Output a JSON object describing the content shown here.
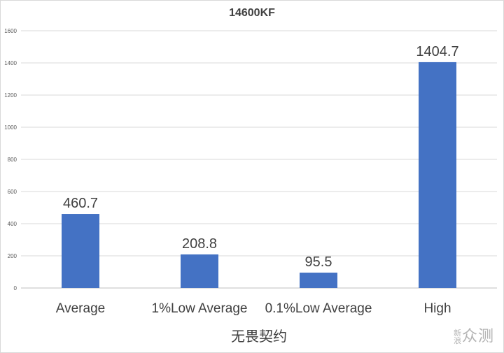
{
  "chart_data": {
    "type": "bar",
    "title": "14600KF",
    "subtitle": "无畏契约",
    "categories": [
      "Average",
      "1%Low Average",
      "0.1%Low Average",
      "High"
    ],
    "values": [
      460.7,
      208.8,
      95.5,
      1404.7
    ],
    "value_labels": [
      "460.7",
      "208.8",
      "95.5",
      "1404.7"
    ],
    "ylim": [
      0,
      1600
    ],
    "yticks": [
      "0",
      "200",
      "400",
      "600",
      "800",
      "1000",
      "1200",
      "1400",
      "1600"
    ],
    "grid": true,
    "bar_color": "#4472c4",
    "xlabel": "",
    "ylabel": ""
  },
  "watermark": {
    "text_top": "新",
    "text_bottom": "浪",
    "text_main": "众测"
  }
}
